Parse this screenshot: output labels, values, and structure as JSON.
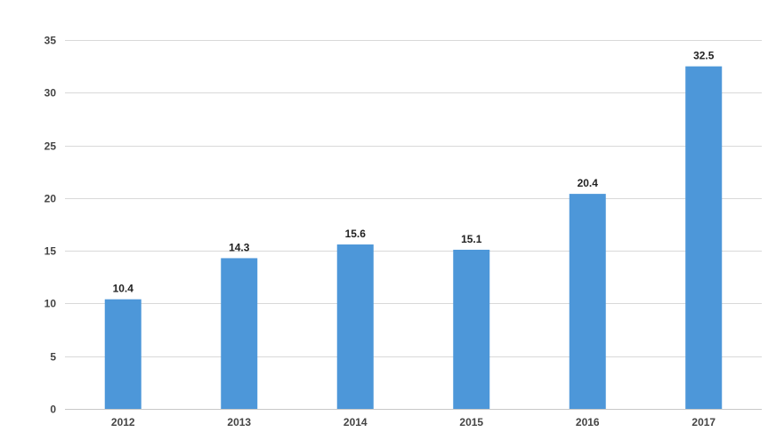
{
  "chart_data": {
    "type": "bar",
    "categories": [
      "2012",
      "2013",
      "2014",
      "2015",
      "2016",
      "2017"
    ],
    "values": [
      10.4,
      14.3,
      15.6,
      15.1,
      20.4,
      32.5
    ],
    "data_labels": [
      "10.4",
      "14.3",
      "15.6",
      "15.1",
      "20.4",
      "32.5"
    ],
    "title": "",
    "xlabel": "",
    "ylabel": "",
    "ylim": [
      0,
      35
    ],
    "yticks": [
      0,
      5,
      10,
      15,
      20,
      25,
      30,
      35
    ],
    "grid": true,
    "legend": "none",
    "colors": {
      "bar": "#4d97d9",
      "grid": "#d9d9d9",
      "axis": "#c8c8c8"
    }
  }
}
